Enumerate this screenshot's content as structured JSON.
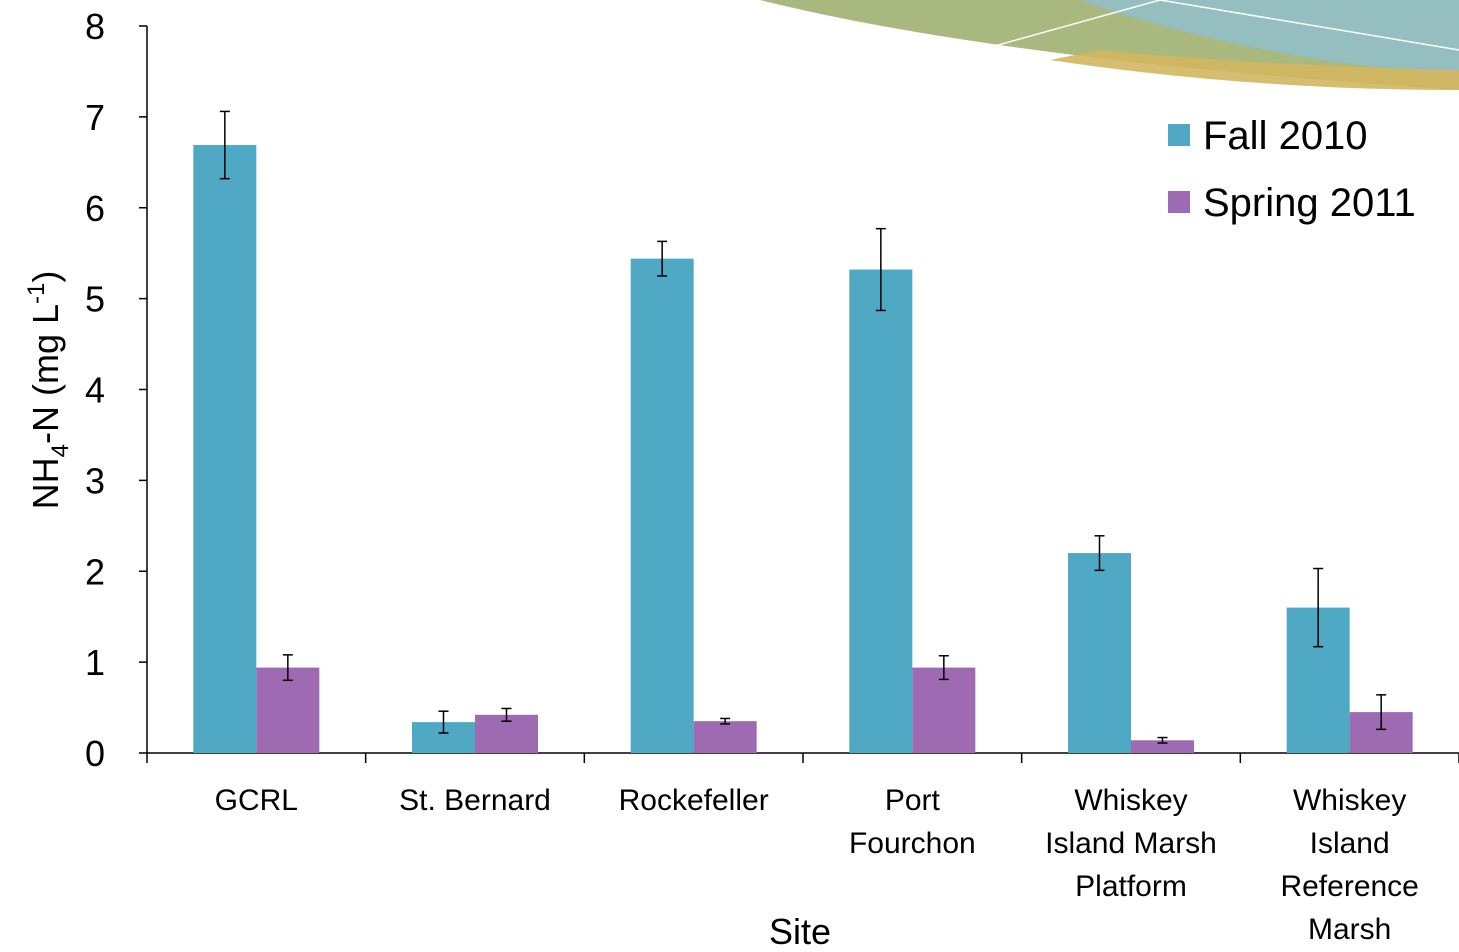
{
  "chart_data": {
    "type": "bar",
    "x_label": "Site",
    "y_label": {
      "base": "NH",
      "sub": "4",
      "mid": "-N (mg L",
      "sup": "-1",
      "end": ")"
    },
    "categories": [
      [
        "GCRL"
      ],
      [
        "St. Bernard"
      ],
      [
        "Rockefeller"
      ],
      [
        "Port",
        "Fourchon"
      ],
      [
        "Whiskey",
        "Island Marsh",
        "Platform"
      ],
      [
        "Whiskey",
        "Island",
        "Reference",
        "Marsh"
      ]
    ],
    "series": [
      {
        "name": "Fall 2010",
        "color": "#4fa8c4",
        "values": [
          6.69,
          0.34,
          5.44,
          5.32,
          2.2,
          1.6
        ],
        "errors": [
          0.37,
          0.12,
          0.19,
          0.45,
          0.19,
          0.43
        ]
      },
      {
        "name": "Spring 2011",
        "color": "#9e6ab2",
        "values": [
          0.94,
          0.42,
          0.35,
          0.94,
          0.14,
          0.45
        ],
        "errors": [
          0.14,
          0.07,
          0.03,
          0.13,
          0.03,
          0.19
        ]
      }
    ],
    "ylim": [
      0,
      8
    ],
    "yticks": [
      0,
      1,
      2,
      3,
      4,
      5,
      6,
      7,
      8
    ],
    "legend": "top-right"
  }
}
